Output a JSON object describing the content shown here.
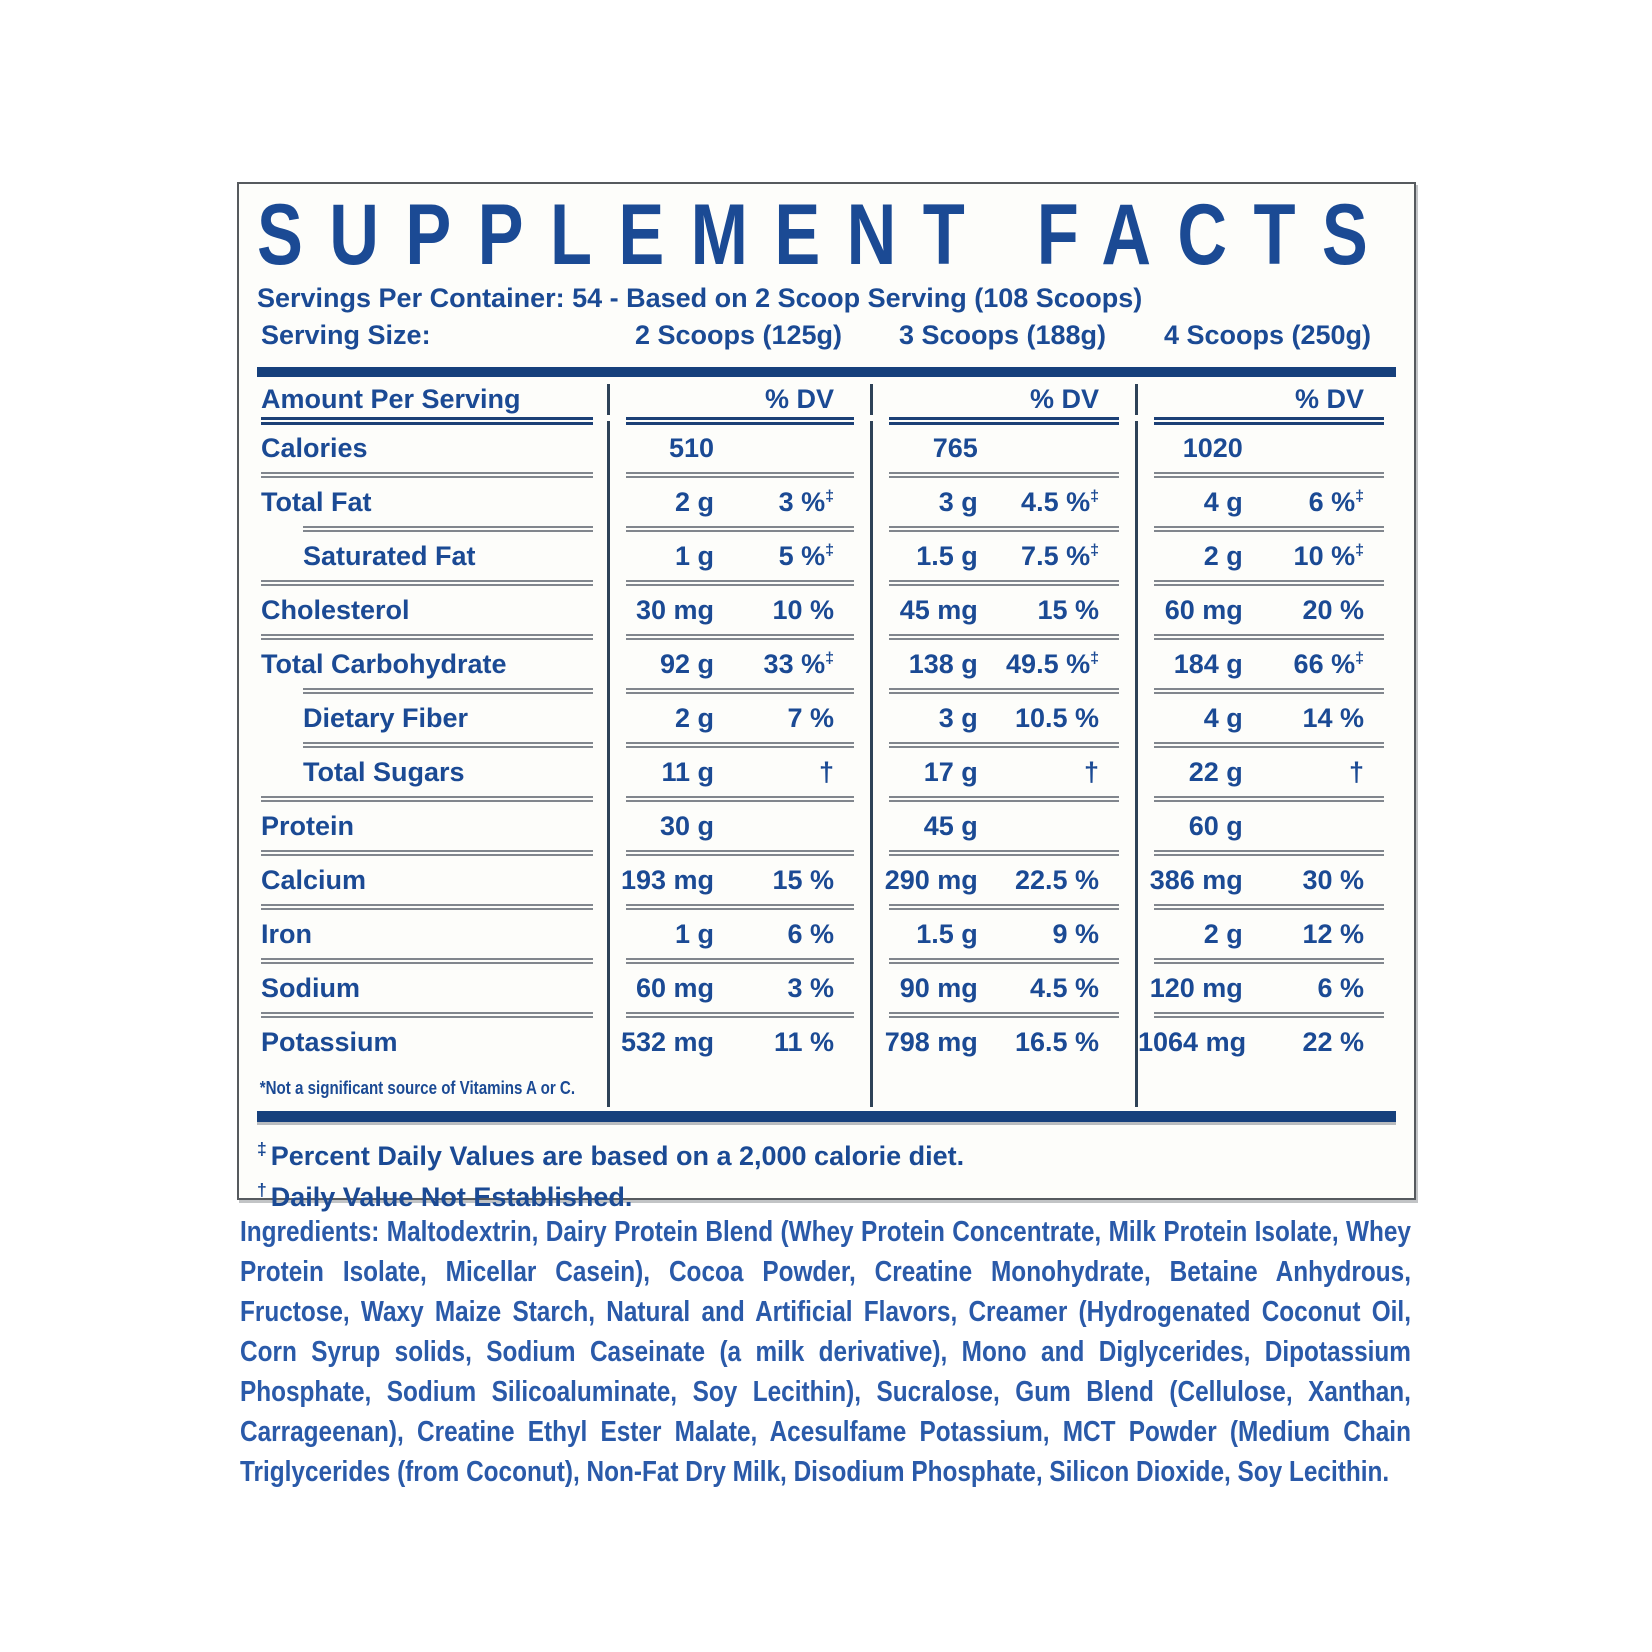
{
  "panel": {
    "title": "SUPPLEMENT FACTS",
    "servings_line": "Servings Per Container: 54 - Based on 2 Scoop Serving (108 Scoops)",
    "serving_size_label": "Serving Size:",
    "serving_sizes": [
      "2 Scoops (125g)",
      "3 Scoops (188g)",
      "4 Scoops (250g)"
    ],
    "header": {
      "amount_label": "Amount Per Serving",
      "dv_label": "% DV"
    },
    "rows": [
      {
        "label": "Calories",
        "indent": false,
        "cols": [
          {
            "amt": "510",
            "pct": "",
            "mark": ""
          },
          {
            "amt": "765",
            "pct": "",
            "mark": ""
          },
          {
            "amt": "1020",
            "pct": "",
            "mark": ""
          }
        ]
      },
      {
        "label": "Total Fat",
        "indent": false,
        "cols": [
          {
            "amt": "2 g",
            "pct": "3 %",
            "mark": "‡"
          },
          {
            "amt": "3 g",
            "pct": "4.5 %",
            "mark": "‡"
          },
          {
            "amt": "4 g",
            "pct": "6 %",
            "mark": "‡"
          }
        ]
      },
      {
        "label": "Saturated Fat",
        "indent": true,
        "cols": [
          {
            "amt": "1 g",
            "pct": "5 %",
            "mark": "‡"
          },
          {
            "amt": "1.5 g",
            "pct": "7.5 %",
            "mark": "‡"
          },
          {
            "amt": "2 g",
            "pct": "10 %",
            "mark": "‡"
          }
        ]
      },
      {
        "label": "Cholesterol",
        "indent": false,
        "cols": [
          {
            "amt": "30 mg",
            "pct": "10 %",
            "mark": ""
          },
          {
            "amt": "45 mg",
            "pct": "15 %",
            "mark": ""
          },
          {
            "amt": "60 mg",
            "pct": "20 %",
            "mark": ""
          }
        ]
      },
      {
        "label": "Total Carbohydrate",
        "indent": false,
        "cols": [
          {
            "amt": "92 g",
            "pct": "33 %",
            "mark": "‡"
          },
          {
            "amt": "138 g",
            "pct": "49.5 %",
            "mark": "‡"
          },
          {
            "amt": "184 g",
            "pct": "66 %",
            "mark": "‡"
          }
        ]
      },
      {
        "label": "Dietary Fiber",
        "indent": true,
        "cols": [
          {
            "amt": "2 g",
            "pct": "7 %",
            "mark": ""
          },
          {
            "amt": "3 g",
            "pct": "10.5 %",
            "mark": ""
          },
          {
            "amt": "4 g",
            "pct": "14 %",
            "mark": ""
          }
        ]
      },
      {
        "label": "Total Sugars",
        "indent": true,
        "cols": [
          {
            "amt": "11 g",
            "pct": "†",
            "mark": ""
          },
          {
            "amt": "17 g",
            "pct": "†",
            "mark": ""
          },
          {
            "amt": "22 g",
            "pct": "†",
            "mark": ""
          }
        ]
      },
      {
        "label": "Protein",
        "indent": false,
        "cols": [
          {
            "amt": "30 g",
            "pct": "",
            "mark": ""
          },
          {
            "amt": "45 g",
            "pct": "",
            "mark": ""
          },
          {
            "amt": "60 g",
            "pct": "",
            "mark": ""
          }
        ]
      },
      {
        "label": "Calcium",
        "indent": false,
        "cols": [
          {
            "amt": "193 mg",
            "pct": "15 %",
            "mark": ""
          },
          {
            "amt": "290 mg",
            "pct": "22.5 %",
            "mark": ""
          },
          {
            "amt": "386 mg",
            "pct": "30 %",
            "mark": ""
          }
        ]
      },
      {
        "label": "Iron",
        "indent": false,
        "cols": [
          {
            "amt": "1 g",
            "pct": "6 %",
            "mark": ""
          },
          {
            "amt": "1.5 g",
            "pct": "9 %",
            "mark": ""
          },
          {
            "amt": "2 g",
            "pct": "12 %",
            "mark": ""
          }
        ]
      },
      {
        "label": "Sodium",
        "indent": false,
        "cols": [
          {
            "amt": "60 mg",
            "pct": "3 %",
            "mark": ""
          },
          {
            "amt": "90 mg",
            "pct": "4.5 %",
            "mark": ""
          },
          {
            "amt": "120 mg",
            "pct": "6 %",
            "mark": ""
          }
        ]
      },
      {
        "label": "Potassium",
        "indent": false,
        "cols": [
          {
            "amt": "532 mg",
            "pct": "11 %",
            "mark": ""
          },
          {
            "amt": "798 mg",
            "pct": "16.5 %",
            "mark": ""
          },
          {
            "amt": "1064 mg",
            "pct": "22 %",
            "mark": ""
          }
        ]
      }
    ],
    "table_footnote": "*Not a significant source of Vitamins A or C.",
    "footnotes": [
      {
        "mark": "‡",
        "text": "Percent Daily Values are based on a 2,000 calorie diet."
      },
      {
        "mark": "†",
        "text": "Daily Value Not Established."
      }
    ]
  },
  "ingredients": {
    "label": "Ingredients:",
    "text": " Maltodextrin, Dairy Protein Blend (Whey Protein Concentrate, Milk Protein Isolate, Whey Protein Isolate, Micellar Casein), Cocoa Powder, Creatine Monohydrate, Betaine Anhydrous, Fructose, Waxy Maize Starch, Natural and Artificial Flavors, Creamer (Hydrogenated Coconut Oil, Corn Syrup solids, Sodium Caseinate (a milk derivative), Mono and Diglycerides, Dipotassium Phosphate, Sodium Silicoaluminate, Soy Lecithin), Sucralose, Gum Blend (Cellulose, Xanthan, Carrageenan), Creatine Ethyl Ester Malate, Acesulfame Potassium, MCT Powder (Medium Chain Triglycerides (from Coconut), Non-Fat Dry Milk, Disodium Phosphate, Silicon Dioxide, Soy Lecithin."
  },
  "colors": {
    "text_navy": "#1b4a94",
    "text_ingredients": "#2a5aa9",
    "rule_gray": "#81868d",
    "rule_navy": "#1c4076",
    "bar_navy": "#16407c",
    "divider": "#2e4257",
    "border_gray": "#565a5e"
  }
}
